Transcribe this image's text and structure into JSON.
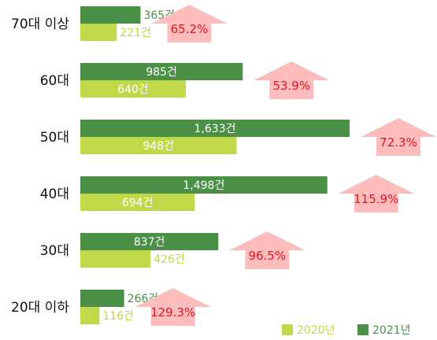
{
  "chart_data": {
    "type": "bar",
    "orientation": "horizontal",
    "categories": [
      "70대 이상",
      "60대",
      "50대",
      "40대",
      "30대",
      "20대 이하"
    ],
    "series": [
      {
        "name": "2021년",
        "color": "#4c8f47",
        "values": [
          365,
          985,
          1633,
          1498,
          837,
          266
        ],
        "labels": [
          "365건",
          "985건",
          "1,633건",
          "1,498건",
          "837건",
          "266건"
        ]
      },
      {
        "name": "2020년",
        "color": "#c0d94a",
        "values": [
          221,
          640,
          948,
          694,
          426,
          116
        ],
        "labels": [
          "221건",
          "640건",
          "948건",
          "694건",
          "426건",
          "116건"
        ]
      }
    ],
    "growth_labels": [
      "65.2%",
      "53.9%",
      "72.3%",
      "115.9%",
      "96.5%",
      "129.3%"
    ],
    "growth_color": "#ffbcbc",
    "growth_text_color": "#e8131f",
    "legend": {
      "position": "bottom-right",
      "order": [
        "2020년",
        "2021년"
      ]
    },
    "grid": false
  }
}
